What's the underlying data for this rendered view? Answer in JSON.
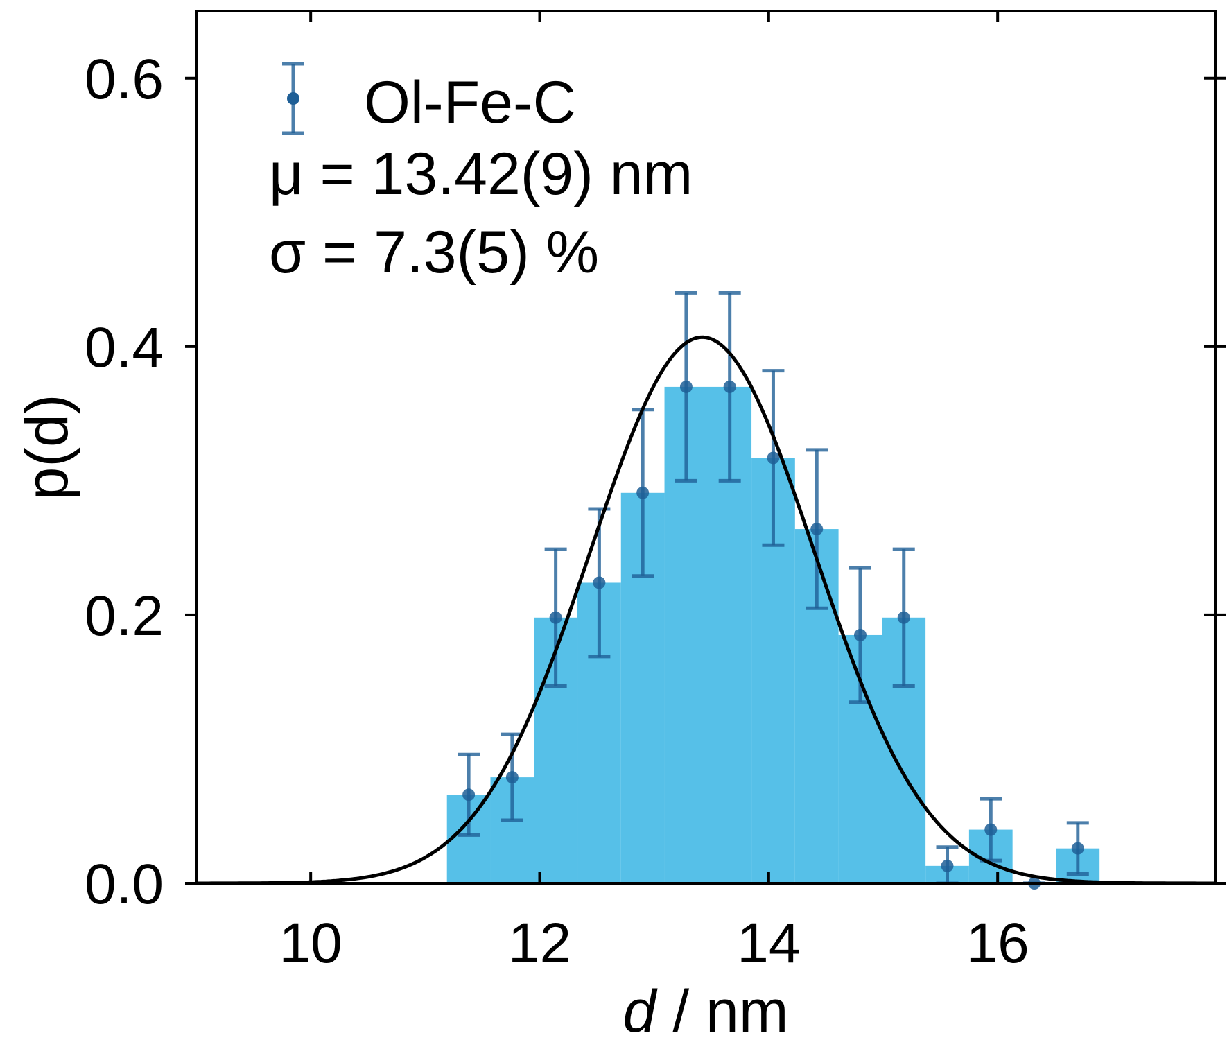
{
  "chart_data": {
    "type": "bar",
    "xlabel_italic": "d",
    "xlabel_rest": " / nm",
    "ylabel": "p(d)",
    "xlim": [
      9.0,
      17.9
    ],
    "ylim": [
      0.0,
      0.65
    ],
    "x_ticks": [
      10,
      12,
      14,
      16
    ],
    "y_ticks": [
      0.0,
      0.2,
      0.4,
      0.6
    ],
    "x_tick_labels": [
      "10",
      "12",
      "14",
      "16"
    ],
    "y_tick_labels": [
      "0.0",
      "0.2",
      "0.4",
      "0.6"
    ],
    "grid": false,
    "legend": {
      "position": "top-left",
      "label": "Ol-Fe-C",
      "lines": [
        "μ = 13.42(9) nm",
        "σ = 7.3(5) %"
      ]
    },
    "histogram": {
      "bin_width": 0.38,
      "bin_centers": [
        11.38,
        11.76,
        12.14,
        12.52,
        12.9,
        13.28,
        13.66,
        14.04,
        14.42,
        14.8,
        15.18,
        15.56,
        15.94,
        16.32,
        16.7
      ],
      "values": [
        0.066,
        0.079,
        0.198,
        0.224,
        0.291,
        0.37,
        0.37,
        0.317,
        0.264,
        0.185,
        0.198,
        0.013,
        0.04,
        0.0,
        0.026
      ],
      "errors": [
        0.03,
        0.032,
        0.051,
        0.055,
        0.062,
        0.07,
        0.07,
        0.065,
        0.059,
        0.05,
        0.051,
        0.014,
        0.023,
        0.0,
        0.019
      ],
      "color": "#56c0e8"
    },
    "fit": {
      "type": "gaussian",
      "mu": 13.42,
      "sigma_rel": 0.073,
      "peak": 0.407,
      "color": "#000000"
    },
    "errorbar_color": "#1f5f96"
  }
}
